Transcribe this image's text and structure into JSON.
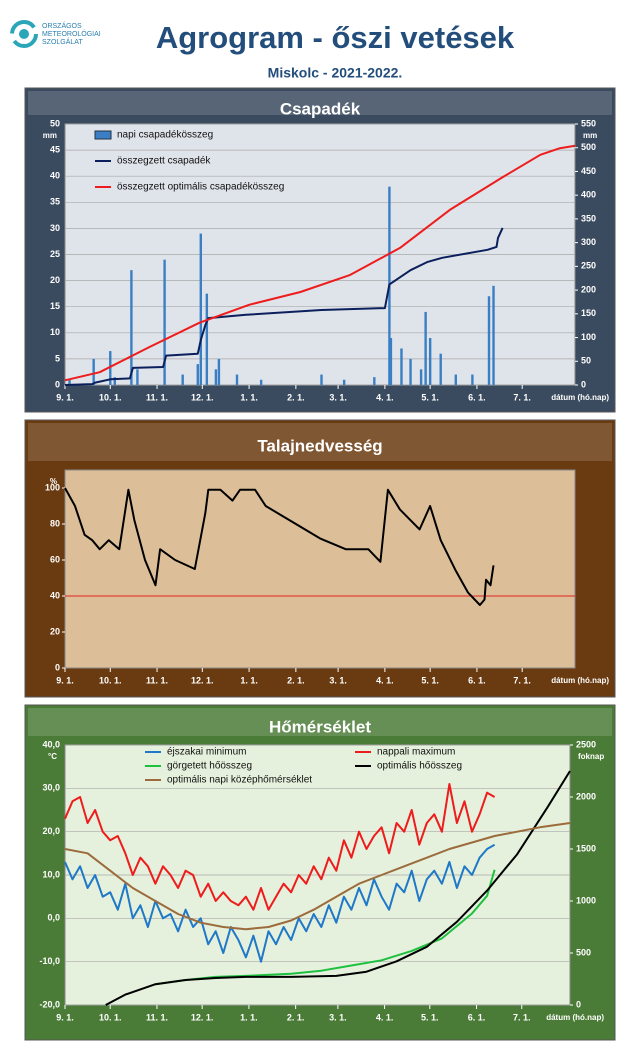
{
  "header": {
    "logo_lines": [
      "ORSZÁGOS",
      "METEOROLÓGIAI",
      "SZOLGÁLAT"
    ],
    "title": "Agrogram - őszi vetések",
    "subtitle": "Miskolc - 2021-2022."
  },
  "chart_data": [
    {
      "type": "combo",
      "title": "Csapadék",
      "background": "#3b4b5f",
      "plot_background": "#dfe3ea",
      "grid": true,
      "y_unit": "mm",
      "y2_unit": "mm",
      "xlabel": "dátum (hó.nap)",
      "xlim": [
        0,
        338
      ],
      "xticks": [
        {
          "value": 0,
          "label": "9. 1."
        },
        {
          "value": 30,
          "label": "10. 1."
        },
        {
          "value": 61,
          "label": "11. 1."
        },
        {
          "value": 91,
          "label": "12. 1."
        },
        {
          "value": 122,
          "label": "1. 1."
        },
        {
          "value": 153,
          "label": "2. 1."
        },
        {
          "value": 181,
          "label": "3. 1."
        },
        {
          "value": 212,
          "label": "4. 1."
        },
        {
          "value": 242,
          "label": "5. 1."
        },
        {
          "value": 273,
          "label": "6. 1."
        },
        {
          "value": 303,
          "label": "7. 1."
        }
      ],
      "ylim": [
        0,
        50
      ],
      "yticks": [
        0,
        5,
        10,
        15,
        20,
        25,
        30,
        35,
        40,
        45,
        50
      ],
      "y2lim": [
        0,
        550
      ],
      "y2ticks": [
        0,
        50,
        100,
        150,
        200,
        250,
        300,
        350,
        400,
        450,
        500,
        550
      ],
      "series": [
        {
          "name": "napi csapadékösszeg",
          "type": "bar",
          "color": "#3a7fc4",
          "x": [
            3,
            19,
            30,
            33,
            44,
            48,
            66,
            78,
            88,
            90,
            94,
            100,
            102,
            114,
            130,
            170,
            185,
            205,
            215,
            216,
            223,
            229,
            236,
            239,
            242,
            249,
            259,
            270,
            281,
            284
          ],
          "values": [
            1,
            5,
            6.5,
            1.5,
            22,
            3,
            24,
            2,
            4,
            29,
            17.5,
            3,
            5,
            2,
            1,
            2,
            1,
            1.5,
            38,
            9,
            7,
            5,
            3,
            14,
            9,
            6,
            2,
            2,
            17,
            19
          ]
        },
        {
          "name": "összegzett csapadék",
          "type": "line",
          "axis": "y2",
          "color": "#0b1f5c",
          "x": [
            0,
            18,
            20,
            30,
            43,
            45,
            65,
            67,
            88,
            90,
            93,
            95,
            120,
            170,
            212,
            215,
            229,
            240,
            250,
            280,
            286,
            287,
            290
          ],
          "values": [
            0,
            2,
            5,
            12,
            14,
            36,
            38,
            62,
            66,
            95,
            126,
            141,
            148,
            158,
            162,
            212,
            242,
            259,
            268,
            285,
            291,
            310,
            331
          ]
        },
        {
          "name": "összegzett optimális  csapadékösszeg",
          "type": "line",
          "axis": "y2",
          "color": "#ee1c1c",
          "x": [
            0,
            23,
            56,
            89,
            122,
            156,
            189,
            222,
            255,
            289,
            315,
            328,
            338
          ],
          "values": [
            10,
            27,
            80,
            131,
            169,
            196,
            232,
            289,
            369,
            436,
            485,
            499,
            504
          ]
        }
      ]
    },
    {
      "type": "line",
      "title": "Talajnedvesség",
      "background": "#6a3a10",
      "plot_background": "#dcbf98",
      "grid": false,
      "y_unit": "%",
      "xlabel": "dátum (hó.nap)",
      "threshold": 40,
      "threshold_color": "#e02020",
      "xlim": [
        0,
        338
      ],
      "xticks": [
        {
          "value": 0,
          "label": "9. 1."
        },
        {
          "value": 30,
          "label": "10. 1."
        },
        {
          "value": 61,
          "label": "11. 1."
        },
        {
          "value": 91,
          "label": "12. 1."
        },
        {
          "value": 122,
          "label": "1. 1."
        },
        {
          "value": 153,
          "label": "2. 1."
        },
        {
          "value": 181,
          "label": "3. 1."
        },
        {
          "value": 212,
          "label": "4. 1."
        },
        {
          "value": 242,
          "label": "5. 1."
        },
        {
          "value": 273,
          "label": "6. 1."
        },
        {
          "value": 303,
          "label": "7. 1."
        }
      ],
      "ylim": [
        0,
        110
      ],
      "yticks": [
        0,
        20,
        40,
        60,
        80,
        100
      ],
      "series": [
        {
          "type": "line",
          "color": "#000000",
          "x": [
            0,
            6.6,
            13,
            18,
            23,
            29,
            36,
            42,
            46,
            53,
            60,
            63,
            73,
            86,
            93,
            95,
            103,
            111,
            116,
            126,
            133,
            149,
            169,
            186,
            201,
            209,
            214,
            222,
            235,
            242,
            249,
            259,
            267,
            275,
            278,
            279,
            282,
            284
          ],
          "values": [
            100,
            90,
            74,
            71,
            66,
            71,
            66,
            99,
            82,
            60,
            46,
            66,
            60,
            55,
            86,
            99,
            99,
            93,
            99,
            99,
            90,
            82,
            72,
            66,
            66,
            59,
            99,
            88,
            77,
            90,
            71,
            54,
            42,
            35,
            38,
            49,
            46,
            57
          ]
        }
      ]
    },
    {
      "type": "line",
      "title": "Hőmérséklet",
      "background": "#4b7c37",
      "plot_background": "#e5f1dc",
      "grid": true,
      "legend_columns": 2,
      "y_unit": "°C",
      "y2_unit": "foknap",
      "xlabel": "dátum (hó.nap)",
      "xlim": [
        0,
        335
      ],
      "xticks": [
        {
          "value": 0,
          "label": "9. 1."
        },
        {
          "value": 30,
          "label": "10. 1."
        },
        {
          "value": 61,
          "label": "11. 1."
        },
        {
          "value": 91,
          "label": "12. 1."
        },
        {
          "value": 122,
          "label": "1. 1."
        },
        {
          "value": 153,
          "label": "2. 1."
        },
        {
          "value": 181,
          "label": "3. 1."
        },
        {
          "value": 212,
          "label": "4. 1."
        },
        {
          "value": 242,
          "label": "5. 1."
        },
        {
          "value": 273,
          "label": "6. 1."
        },
        {
          "value": 303,
          "label": "7. 1."
        }
      ],
      "ylim": [
        -20,
        40
      ],
      "yticks": [
        {
          "value": -20,
          "label": "-20,0"
        },
        {
          "value": -10,
          "label": "-10,0"
        },
        {
          "value": 0,
          "label": "0,0"
        },
        {
          "value": 10,
          "label": "10,0"
        },
        {
          "value": 20,
          "label": "20,0"
        },
        {
          "value": 30,
          "label": "30,0"
        },
        {
          "value": 40,
          "label": "40,0"
        }
      ],
      "y2lim": [
        0,
        2500
      ],
      "y2ticks": [
        0,
        500,
        1000,
        1500,
        2000,
        2500
      ],
      "series": [
        {
          "name": "éjszakai minimum",
          "type": "line",
          "color": "#1f78c8",
          "x": [
            0,
            5,
            10,
            15,
            20,
            25,
            30,
            35,
            40,
            45,
            50,
            55,
            60,
            65,
            70,
            75,
            80,
            85,
            90,
            95,
            100,
            105,
            110,
            115,
            120,
            125,
            130,
            135,
            140,
            145,
            150,
            155,
            160,
            165,
            170,
            175,
            180,
            185,
            190,
            195,
            200,
            205,
            210,
            215,
            220,
            225,
            230,
            235,
            240,
            245,
            250,
            255,
            260,
            265,
            270,
            275,
            280,
            285
          ],
          "values": [
            13,
            9,
            12,
            7,
            10,
            5,
            6,
            2,
            8,
            0,
            3,
            -2,
            4,
            0,
            1,
            -3,
            2,
            -2,
            0,
            -6,
            -3,
            -8,
            -2,
            -5,
            -9,
            -4,
            -10,
            -3,
            -6,
            -2,
            -5,
            0,
            -3,
            1,
            -2,
            3,
            -1,
            5,
            2,
            7,
            3,
            9,
            5,
            2,
            8,
            6,
            11,
            4,
            9,
            11,
            8,
            13,
            7,
            12,
            10,
            14,
            16,
            17
          ]
        },
        {
          "name": "nappali maximum",
          "type": "line",
          "color": "#ee1c1c",
          "x": [
            0,
            5,
            10,
            15,
            20,
            25,
            30,
            35,
            40,
            45,
            50,
            55,
            60,
            65,
            70,
            75,
            80,
            85,
            90,
            95,
            100,
            105,
            110,
            115,
            120,
            125,
            130,
            135,
            140,
            145,
            150,
            155,
            160,
            165,
            170,
            175,
            180,
            185,
            190,
            195,
            200,
            205,
            210,
            215,
            220,
            225,
            230,
            235,
            240,
            245,
            250,
            255,
            260,
            265,
            270,
            275,
            280,
            285
          ],
          "values": [
            23,
            27,
            28,
            22,
            25,
            20,
            18,
            19,
            15,
            10,
            14,
            12,
            8,
            12,
            10,
            7,
            11,
            10,
            5,
            8,
            4,
            6,
            4,
            3,
            5,
            2,
            7,
            2,
            5,
            8,
            6,
            10,
            8,
            12,
            9,
            14,
            11,
            18,
            14,
            20,
            16,
            19,
            21,
            15,
            22,
            20,
            25,
            17,
            22,
            24,
            20,
            31,
            22,
            27,
            20,
            24,
            29,
            28
          ]
        },
        {
          "name": "görgetett hőösszeg",
          "type": "line",
          "axis": "y2",
          "color": "#1ec040",
          "x": [
            60,
            80,
            100,
            120,
            150,
            170,
            190,
            210,
            230,
            250,
            270,
            280,
            285
          ],
          "values": [
            200,
            240,
            270,
            280,
            300,
            330,
            380,
            430,
            520,
            640,
            880,
            1050,
            1300
          ]
        },
        {
          "name": "optimális hőösszeg",
          "type": "line",
          "axis": "y2",
          "color": "#000000",
          "x": [
            27,
            40,
            60,
            80,
            100,
            120,
            150,
            180,
            200,
            220,
            240,
            260,
            280,
            300,
            320,
            335
          ],
          "values": [
            0,
            100,
            200,
            240,
            260,
            270,
            270,
            280,
            320,
            420,
            560,
            800,
            1100,
            1450,
            1900,
            2250
          ]
        },
        {
          "name": "optimális napi középhőmérséklet",
          "type": "line",
          "color": "#9c6b3c",
          "x": [
            0,
            15,
            30,
            45,
            60,
            75,
            90,
            105,
            120,
            135,
            150,
            165,
            180,
            195,
            210,
            225,
            240,
            255,
            270,
            285,
            300,
            315,
            335
          ],
          "values": [
            16,
            15,
            11,
            7,
            4,
            1,
            -1,
            -2,
            -2.5,
            -2,
            -0.5,
            2,
            5,
            8,
            10,
            12,
            14,
            16,
            17.5,
            19,
            20,
            21,
            22
          ]
        }
      ]
    }
  ]
}
